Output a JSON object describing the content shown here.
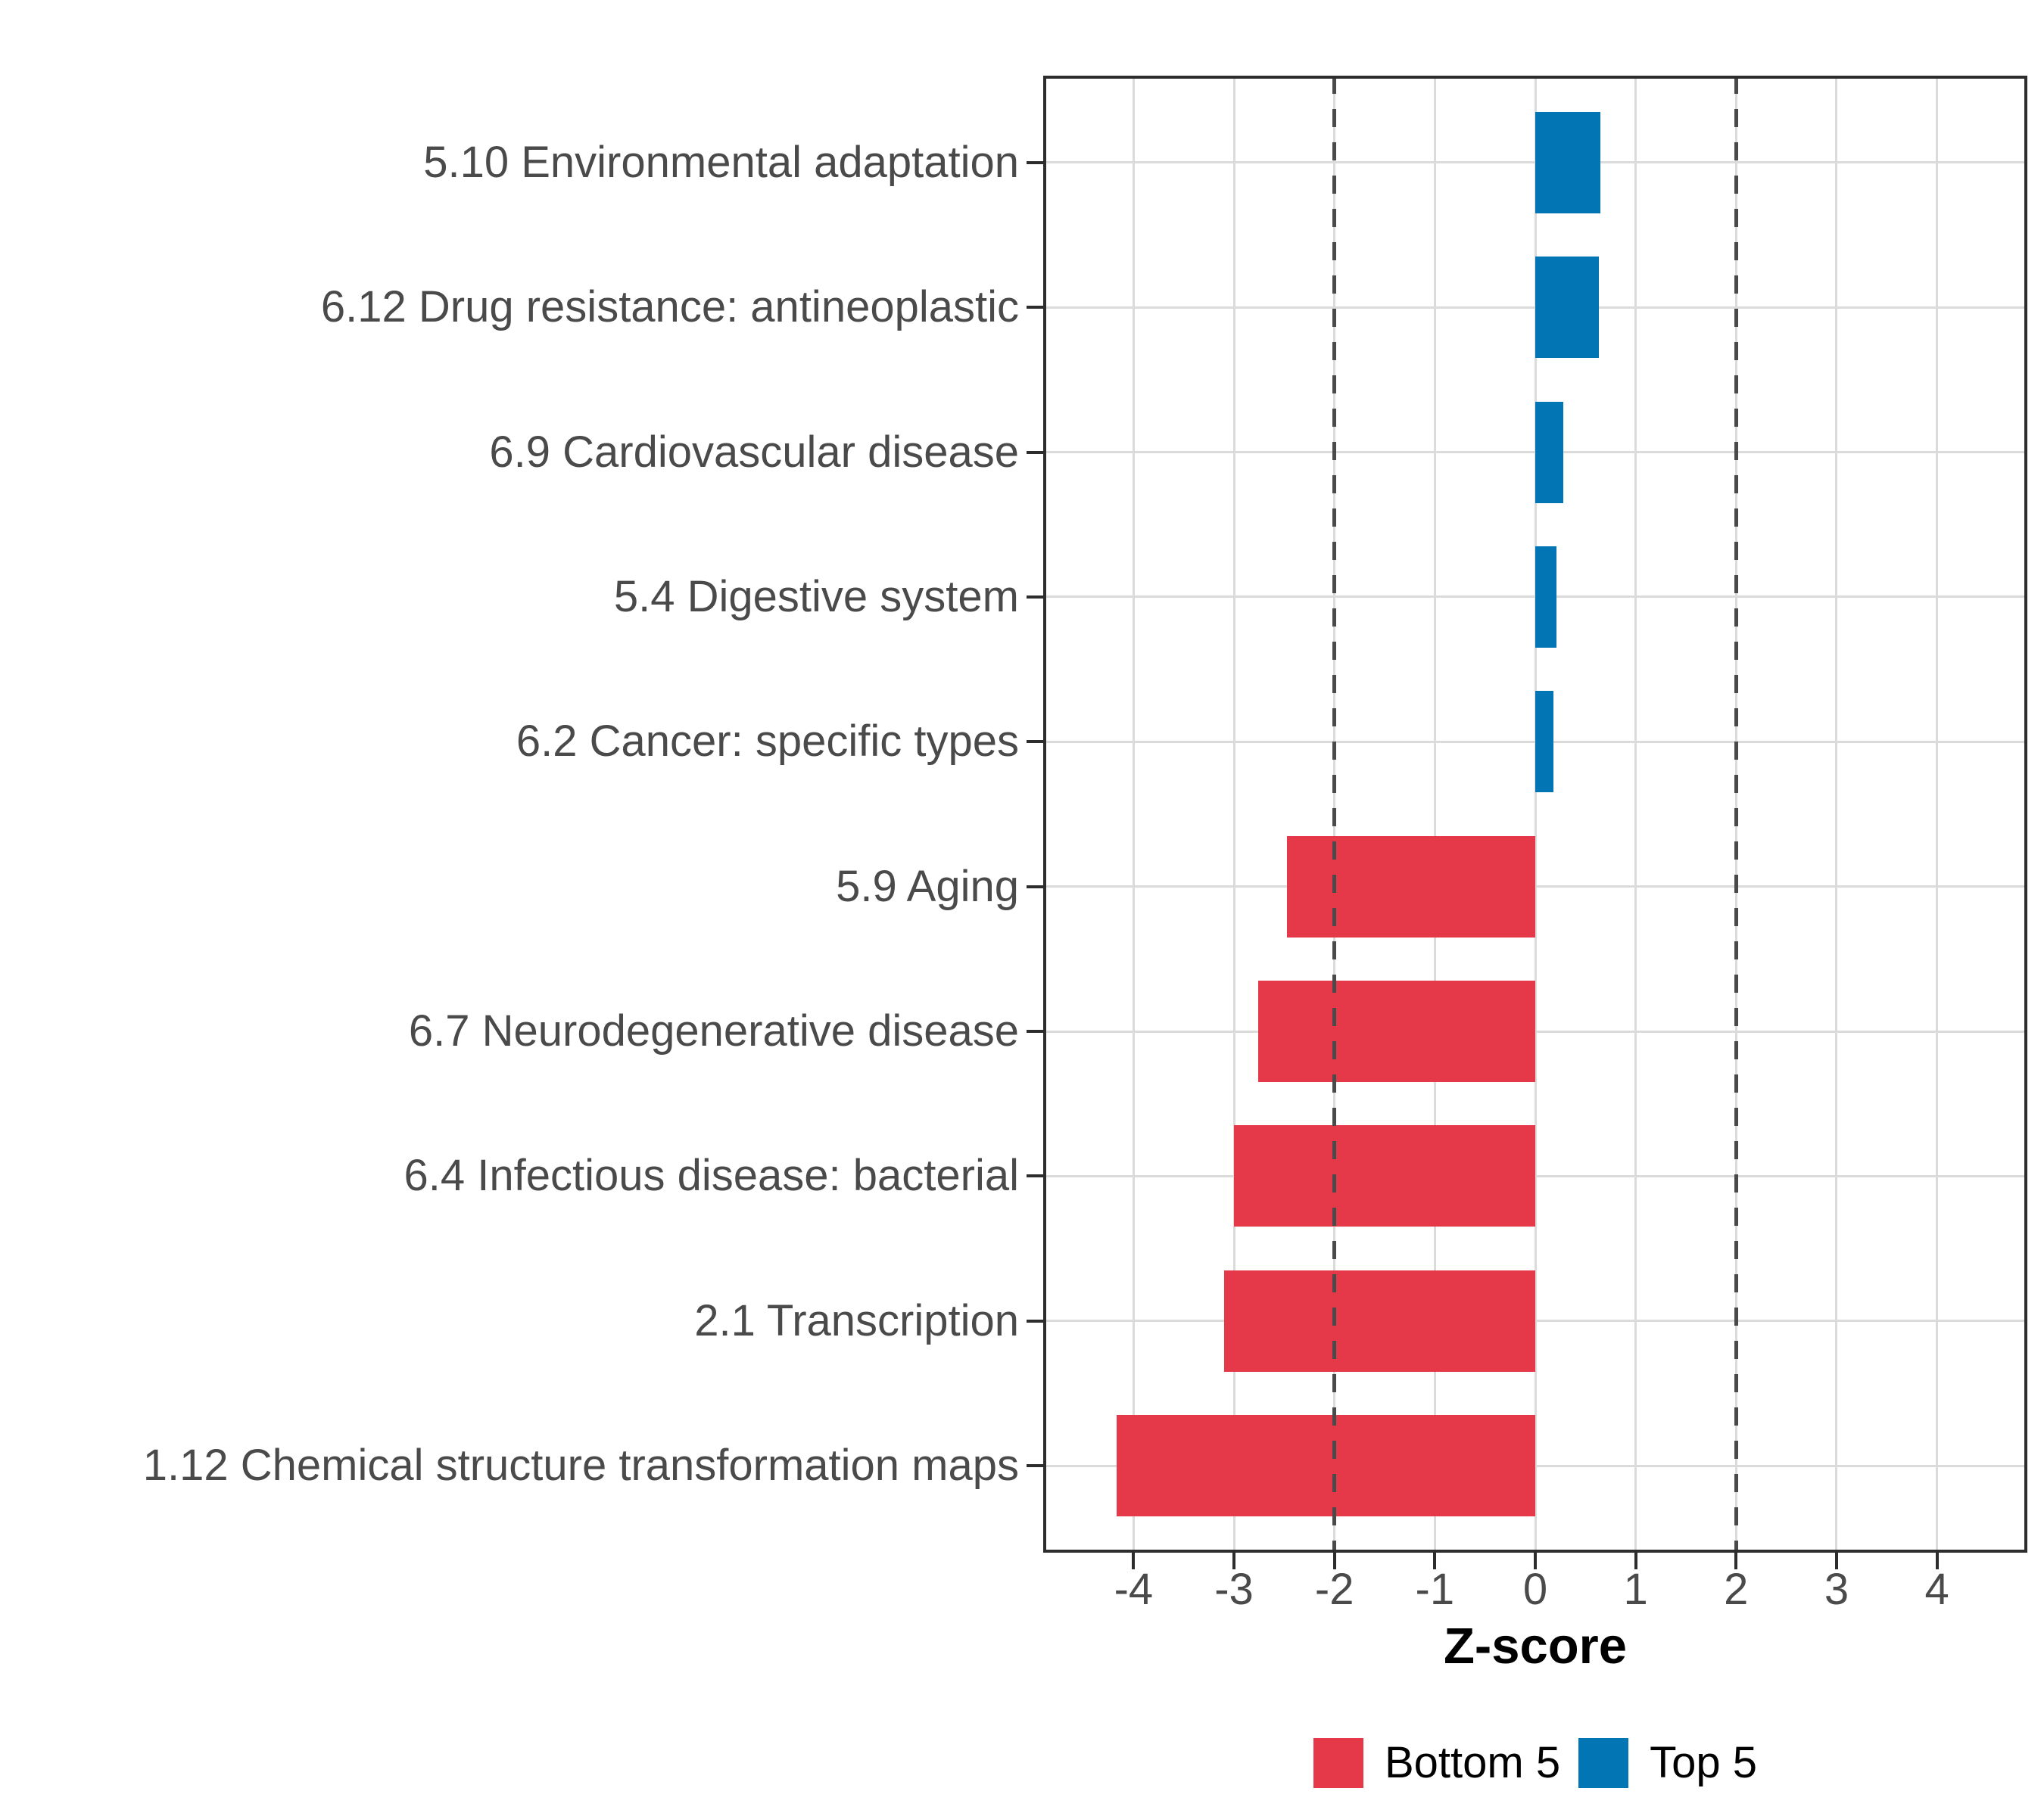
{
  "chart_data": {
    "type": "bar",
    "orientation": "horizontal",
    "title": "",
    "xlabel": "Z-score",
    "ylabel": "",
    "xlim": [
      -4.9,
      4.9
    ],
    "x_ticks": [
      -4,
      -3,
      -2,
      -1,
      0,
      1,
      2,
      3,
      4
    ],
    "grid": true,
    "reference_lines": [
      -2,
      2
    ],
    "reference_line_style": "dashed",
    "reference_line_color": "#4A4A4A",
    "bars": [
      {
        "label": "5.10 Environmental adaptation",
        "value": 0.65,
        "group": "Top 5"
      },
      {
        "label": "6.12 Drug resistance: antineoplastic",
        "value": 0.63,
        "group": "Top 5"
      },
      {
        "label": "6.9 Cardiovascular disease",
        "value": 0.28,
        "group": "Top 5"
      },
      {
        "label": "5.4 Digestive system",
        "value": 0.21,
        "group": "Top 5"
      },
      {
        "label": "6.2 Cancer: specific types",
        "value": 0.18,
        "group": "Top 5"
      },
      {
        "label": "5.9 Aging",
        "value": -2.47,
        "group": "Bottom 5"
      },
      {
        "label": "6.7 Neurodegenerative disease",
        "value": -2.76,
        "group": "Bottom 5"
      },
      {
        "label": "6.4 Infectious disease: bacterial",
        "value": -3.0,
        "group": "Bottom 5"
      },
      {
        "label": "2.1 Transcription",
        "value": -3.1,
        "group": "Bottom 5"
      },
      {
        "label": "1.12 Chemical structure transformation maps",
        "value": -4.17,
        "group": "Bottom 5"
      }
    ],
    "colors": {
      "Bottom 5": "#E53848",
      "Top 5": "#0275B5"
    },
    "legend": [
      {
        "label": "Bottom 5",
        "color": "#E53848"
      },
      {
        "label": "Top 5",
        "color": "#0275B5"
      }
    ],
    "legend_position": "bottom"
  }
}
